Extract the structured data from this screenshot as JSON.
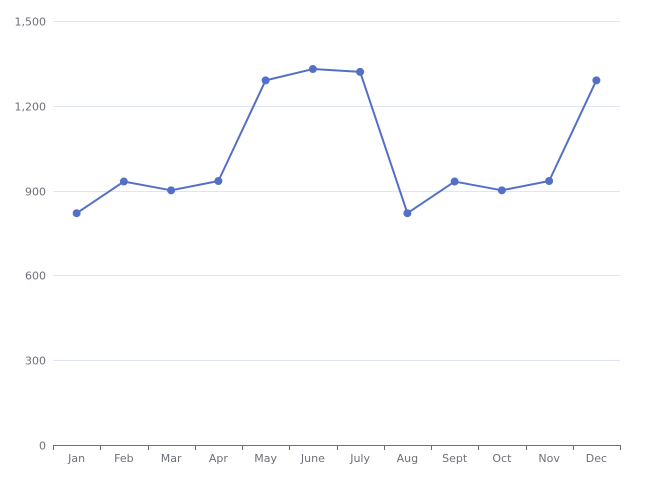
{
  "chart_data": {
    "type": "line",
    "title": "",
    "xlabel": "",
    "ylabel": "",
    "categories": [
      "Jan",
      "Feb",
      "Mar",
      "Apr",
      "May",
      "June",
      "July",
      "Aug",
      "Sept",
      "Oct",
      "Nov",
      "Dec"
    ],
    "series": [
      {
        "values": [
          820,
          932,
          901,
          934,
          1290,
          1330,
          1320,
          820,
          932,
          901,
          934,
          1290
        ],
        "color": "#5470c6"
      }
    ],
    "ylim": [
      0,
      1500
    ],
    "yticks": [
      0,
      300,
      600,
      900,
      1200,
      1500
    ],
    "ytick_labels": [
      "0",
      "300",
      "600",
      "900",
      "1,200",
      "1,500"
    ],
    "grid": true,
    "legend": "none"
  },
  "colors": {
    "line": "#5470c6",
    "grid": "#e0e6f1",
    "axis": "#6e7079",
    "label": "#6e7079"
  }
}
